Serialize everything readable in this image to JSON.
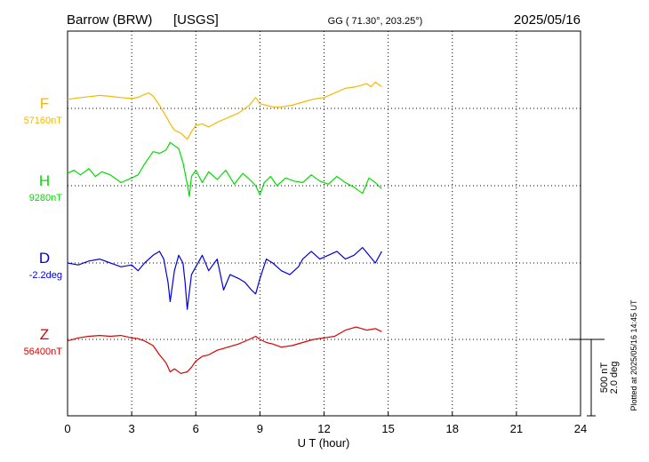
{
  "header": {
    "station": "Barrow (BRW)",
    "source": "[USGS]",
    "coords": "GG ( 71.30°, 203.25°)",
    "date": "2025/05/16"
  },
  "footer": {
    "plotted": "Plotted at 2025/05/16 14:45 UT"
  },
  "scale": {
    "nt": "500 nT",
    "deg": "2.0 deg"
  },
  "chart_data": {
    "type": "line",
    "xlabel": "U T (hour)",
    "xlim": [
      0,
      24
    ],
    "xticks": [
      0,
      3,
      6,
      9,
      12,
      15,
      18,
      21,
      24
    ],
    "xtick_labels": [
      "0",
      "3",
      "6",
      "9",
      "12",
      "15",
      "18",
      "21",
      "24"
    ],
    "grid": true,
    "series": [
      {
        "name": "F",
        "baseline_label": "57160nT",
        "color": "#f5b800",
        "unit": "nT",
        "points": [
          [
            0,
            57218
          ],
          [
            0.5,
            57228
          ],
          [
            1,
            57236
          ],
          [
            1.5,
            57244
          ],
          [
            2,
            57238
          ],
          [
            2.5,
            57230
          ],
          [
            3,
            57224
          ],
          [
            3.3,
            57232
          ],
          [
            3.6,
            57250
          ],
          [
            3.8,
            57260
          ],
          [
            4,
            57240
          ],
          [
            4.3,
            57180
          ],
          [
            4.6,
            57110
          ],
          [
            4.8,
            57060
          ],
          [
            5,
            57020
          ],
          [
            5.3,
            57000
          ],
          [
            5.6,
            56960
          ],
          [
            5.8,
            57010
          ],
          [
            6,
            57050
          ],
          [
            6.3,
            57060
          ],
          [
            6.6,
            57040
          ],
          [
            7,
            57070
          ],
          [
            7.5,
            57100
          ],
          [
            8,
            57130
          ],
          [
            8.5,
            57180
          ],
          [
            8.8,
            57230
          ],
          [
            9,
            57190
          ],
          [
            9.3,
            57180
          ],
          [
            9.6,
            57170
          ],
          [
            10,
            57170
          ],
          [
            10.5,
            57180
          ],
          [
            11,
            57200
          ],
          [
            11.5,
            57220
          ],
          [
            12,
            57230
          ],
          [
            12.5,
            57260
          ],
          [
            13,
            57290
          ],
          [
            13.5,
            57300
          ],
          [
            14,
            57320
          ],
          [
            14.2,
            57300
          ],
          [
            14.4,
            57330
          ],
          [
            14.7,
            57300
          ]
        ]
      },
      {
        "name": "H",
        "baseline_label": "9280nT",
        "color": "#00dd00",
        "unit": "nT",
        "points": [
          [
            0,
            9360
          ],
          [
            0.3,
            9380
          ],
          [
            0.6,
            9350
          ],
          [
            1,
            9390
          ],
          [
            1.3,
            9340
          ],
          [
            1.6,
            9370
          ],
          [
            2,
            9350
          ],
          [
            2.5,
            9300
          ],
          [
            3,
            9330
          ],
          [
            3.3,
            9350
          ],
          [
            3.6,
            9420
          ],
          [
            3.8,
            9460
          ],
          [
            4,
            9500
          ],
          [
            4.3,
            9490
          ],
          [
            4.6,
            9510
          ],
          [
            4.8,
            9560
          ],
          [
            5,
            9540
          ],
          [
            5.2,
            9520
          ],
          [
            5.4,
            9430
          ],
          [
            5.6,
            9290
          ],
          [
            5.7,
            9210
          ],
          [
            5.8,
            9340
          ],
          [
            6,
            9380
          ],
          [
            6.3,
            9300
          ],
          [
            6.6,
            9370
          ],
          [
            7,
            9320
          ],
          [
            7.4,
            9380
          ],
          [
            7.8,
            9290
          ],
          [
            8.2,
            9360
          ],
          [
            8.6,
            9310
          ],
          [
            8.8,
            9280
          ],
          [
            9,
            9220
          ],
          [
            9.2,
            9300
          ],
          [
            9.5,
            9340
          ],
          [
            9.8,
            9280
          ],
          [
            10.2,
            9330
          ],
          [
            10.6,
            9310
          ],
          [
            11,
            9300
          ],
          [
            11.4,
            9350
          ],
          [
            11.8,
            9310
          ],
          [
            12.2,
            9290
          ],
          [
            12.6,
            9340
          ],
          [
            13,
            9300
          ],
          [
            13.4,
            9270
          ],
          [
            13.8,
            9230
          ],
          [
            14.1,
            9330
          ],
          [
            14.4,
            9300
          ],
          [
            14.7,
            9260
          ]
        ]
      },
      {
        "name": "D",
        "baseline_label": "-2.2deg",
        "color": "#0000dd",
        "unit": "deg",
        "points": [
          [
            0,
            -2.2
          ],
          [
            0.5,
            -2.25
          ],
          [
            1,
            -2.15
          ],
          [
            1.5,
            -2.1
          ],
          [
            2,
            -2.2
          ],
          [
            2.5,
            -2.3
          ],
          [
            3,
            -2.25
          ],
          [
            3.3,
            -2.4
          ],
          [
            3.6,
            -2.2
          ],
          [
            4,
            -2.0
          ],
          [
            4.3,
            -1.9
          ],
          [
            4.5,
            -2.1
          ],
          [
            4.7,
            -2.7
          ],
          [
            4.8,
            -3.2
          ],
          [
            5,
            -2.4
          ],
          [
            5.2,
            -2.0
          ],
          [
            5.4,
            -2.2
          ],
          [
            5.5,
            -2.7
          ],
          [
            5.6,
            -3.4
          ],
          [
            5.8,
            -2.5
          ],
          [
            6,
            -2.3
          ],
          [
            6.3,
            -2.0
          ],
          [
            6.6,
            -2.4
          ],
          [
            7,
            -2.1
          ],
          [
            7.3,
            -2.9
          ],
          [
            7.6,
            -2.5
          ],
          [
            8,
            -2.6
          ],
          [
            8.3,
            -2.7
          ],
          [
            8.6,
            -2.9
          ],
          [
            8.8,
            -3.0
          ],
          [
            9,
            -2.6
          ],
          [
            9.3,
            -2.1
          ],
          [
            9.6,
            -2.2
          ],
          [
            10,
            -2.4
          ],
          [
            10.4,
            -2.5
          ],
          [
            10.8,
            -2.3
          ],
          [
            11,
            -2.1
          ],
          [
            11.4,
            -1.9
          ],
          [
            11.8,
            -2.1
          ],
          [
            12.2,
            -2.0
          ],
          [
            12.6,
            -1.9
          ],
          [
            13,
            -2.1
          ],
          [
            13.4,
            -2.0
          ],
          [
            13.8,
            -1.8
          ],
          [
            14.1,
            -2.0
          ],
          [
            14.4,
            -2.2
          ],
          [
            14.7,
            -1.9
          ]
        ]
      },
      {
        "name": "Z",
        "baseline_label": "56400nT",
        "color": "#dd0000",
        "unit": "nT",
        "points": [
          [
            0,
            56390
          ],
          [
            0.5,
            56410
          ],
          [
            1,
            56420
          ],
          [
            1.5,
            56425
          ],
          [
            2,
            56420
          ],
          [
            2.5,
            56425
          ],
          [
            3,
            56410
          ],
          [
            3.3,
            56405
          ],
          [
            3.6,
            56390
          ],
          [
            4,
            56360
          ],
          [
            4.3,
            56300
          ],
          [
            4.6,
            56250
          ],
          [
            4.8,
            56190
          ],
          [
            5,
            56210
          ],
          [
            5.3,
            56180
          ],
          [
            5.6,
            56190
          ],
          [
            5.8,
            56220
          ],
          [
            6,
            56260
          ],
          [
            6.3,
            56290
          ],
          [
            6.6,
            56300
          ],
          [
            7,
            56330
          ],
          [
            7.5,
            56350
          ],
          [
            8,
            56370
          ],
          [
            8.5,
            56400
          ],
          [
            8.8,
            56420
          ],
          [
            9,
            56400
          ],
          [
            9.3,
            56380
          ],
          [
            9.6,
            56370
          ],
          [
            10,
            56350
          ],
          [
            10.5,
            56360
          ],
          [
            11,
            56380
          ],
          [
            11.5,
            56400
          ],
          [
            12,
            56410
          ],
          [
            12.5,
            56420
          ],
          [
            13,
            56460
          ],
          [
            13.5,
            56480
          ],
          [
            14,
            56460
          ],
          [
            14.4,
            56470
          ],
          [
            14.7,
            56450
          ]
        ]
      }
    ]
  }
}
